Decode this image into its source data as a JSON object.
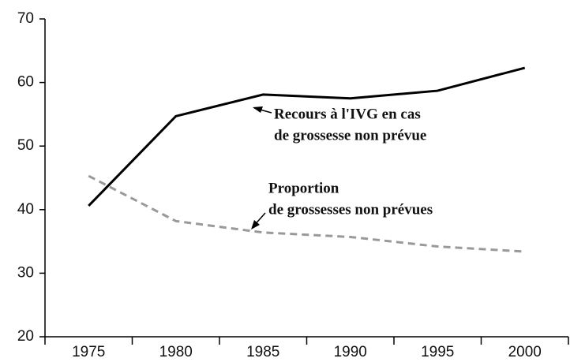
{
  "chart_data": {
    "type": "line",
    "x": [
      1975,
      1980,
      1985,
      1990,
      1995,
      2000
    ],
    "series": [
      {
        "name": "Recours à l'IVG en cas de grossesse non prévue",
        "color": "#000000",
        "dash": false,
        "values": [
          40.6,
          54.7,
          58.1,
          57.5,
          58.7,
          62.3
        ]
      },
      {
        "name": "Proportion de grossesses non prévues",
        "color": "#999999",
        "dash": true,
        "values": [
          45.3,
          38.2,
          36.4,
          35.7,
          34.2,
          33.4
        ]
      }
    ],
    "annotations": [
      {
        "lines": [
          "Recours à l'IVG en cas",
          "de grossesse non prévue"
        ]
      },
      {
        "lines": [
          "Proportion",
          "de grossesses non prévues"
        ]
      }
    ],
    "xlim": [
      1972.5,
      2002.5
    ],
    "xticks": [
      1975,
      1980,
      1985,
      1990,
      1995,
      2000
    ],
    "ylim": [
      20,
      70
    ],
    "yticks": [
      20,
      30,
      40,
      50,
      60,
      70
    ],
    "grid": false
  }
}
